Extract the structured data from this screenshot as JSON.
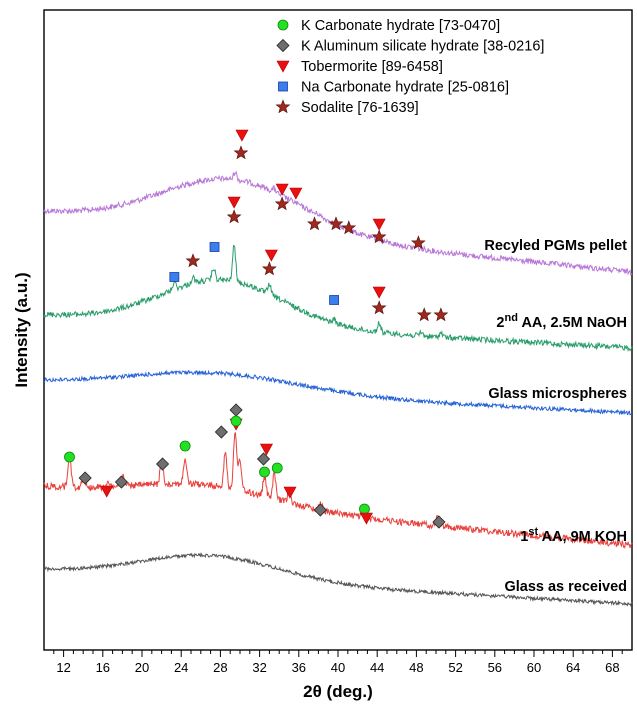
{
  "chart_data": {
    "type": "line",
    "xlabel": "2θ (deg.)",
    "ylabel": "Intensity (a.u.)",
    "xlim": [
      10,
      70
    ],
    "x_ticks": [
      12,
      16,
      20,
      24,
      28,
      32,
      36,
      40,
      44,
      48,
      52,
      56,
      60,
      64,
      68
    ],
    "grid": false,
    "legend_position": "top-center",
    "legend": [
      {
        "key": "k_carbonate",
        "label": "K Carbonate hydrate [73-0470]",
        "marker": "circle",
        "color": "#22e022"
      },
      {
        "key": "k_aluminum",
        "label": "K Aluminum silicate hydrate [38-0216]",
        "marker": "diamond",
        "color": "#6e6e6e"
      },
      {
        "key": "tobermorite",
        "label": "Tobermorite [89-6458]",
        "marker": "triangle-down",
        "color": "#e81010"
      },
      {
        "key": "na_carbonate",
        "label": "Na Carbonate hydrate [25-0816]",
        "marker": "square",
        "color": "#3a7ef0"
      },
      {
        "key": "sodalite",
        "label": "Sodalite [76-1639]",
        "marker": "star",
        "color": "#a0281e"
      }
    ],
    "series": [
      {
        "key": "recycled",
        "label_main": "Recyled PGMs pellet",
        "label_sup": "",
        "label_post": "",
        "color": "#b878d8",
        "peaks": [
          [
            29.5,
            0.55
          ],
          [
            33.5,
            0.25
          ],
          [
            38,
            0.12
          ],
          [
            44,
            0.12
          ],
          [
            48,
            0.08
          ]
        ]
      },
      {
        "key": "naoh",
        "label_main": "",
        "label_pre": "2",
        "label_sup": "nd",
        "label_post": " AA, 2.5M NaOH",
        "color": "#2a9d6a",
        "peaks": [
          [
            23.3,
            0.25
          ],
          [
            25.2,
            0.2
          ],
          [
            27.3,
            0.4
          ],
          [
            29.4,
            1.2
          ],
          [
            33,
            0.35
          ],
          [
            39.6,
            0.12
          ],
          [
            44.2,
            0.3
          ],
          [
            48.5,
            0.12
          ],
          [
            50.5,
            0.15
          ]
        ]
      },
      {
        "key": "microspheres",
        "label_main": "Glass microspheres",
        "label_sup": "",
        "label_post": "",
        "color": "#2663d6",
        "peaks": []
      },
      {
        "key": "koh",
        "label_main": "",
        "label_pre": "1",
        "label_sup": "st",
        "label_post": " AA, 9M KOH",
        "color": "#e8403a",
        "peaks": [
          [
            12.6,
            1.2
          ],
          [
            14,
            0.35
          ],
          [
            16.5,
            0.2
          ],
          [
            18,
            0.35
          ],
          [
            22,
            0.8
          ],
          [
            24.4,
            0.9
          ],
          [
            28.5,
            1.3
          ],
          [
            29.5,
            2.0
          ],
          [
            30,
            1.1
          ],
          [
            32.5,
            0.7
          ],
          [
            33.5,
            0.9
          ],
          [
            35,
            0.4
          ],
          [
            38.2,
            0.25
          ],
          [
            42.8,
            0.35
          ],
          [
            50.2,
            0.35
          ]
        ]
      },
      {
        "key": "received",
        "label_main": "Glass as received",
        "label_sup": "",
        "label_post": "",
        "color": "#555555",
        "peaks": []
      }
    ],
    "phase_markers": [
      {
        "phase": "tobermorite",
        "x": 30.2
      },
      {
        "phase": "sodalite",
        "x": 30.1
      },
      {
        "phase": "tobermorite",
        "x": 34.3
      },
      {
        "phase": "tobermorite",
        "x": 35.7
      },
      {
        "phase": "sodalite",
        "x": 34.3
      },
      {
        "phase": "sodalite",
        "x": 37.6
      },
      {
        "phase": "sodalite",
        "x": 39.8
      },
      {
        "phase": "sodalite",
        "x": 41.1
      },
      {
        "phase": "tobermorite",
        "x": 44.2
      },
      {
        "phase": "sodalite",
        "x": 44.2
      },
      {
        "phase": "sodalite",
        "x": 48.2
      },
      {
        "phase": "tobermorite",
        "x": 29.4
      },
      {
        "phase": "sodalite",
        "x": 29.4
      },
      {
        "phase": "na_carbonate",
        "x": 27.4
      },
      {
        "phase": "sodalite",
        "x": 25.2
      },
      {
        "phase": "na_carbonate",
        "x": 23.3
      },
      {
        "phase": "tobermorite",
        "x": 33.2
      },
      {
        "phase": "sodalite",
        "x": 33.0
      },
      {
        "phase": "na_carbonate",
        "x": 39.6
      },
      {
        "phase": "tobermorite",
        "x": 44.2
      },
      {
        "phase": "sodalite",
        "x": 44.2
      },
      {
        "phase": "sodalite",
        "x": 48.8
      },
      {
        "phase": "sodalite",
        "x": 50.5
      },
      {
        "phase": "tobermorite",
        "x": 29.6
      },
      {
        "phase": "k_aluminum",
        "x": 29.6
      },
      {
        "phase": "k_carbonate",
        "x": 29.6
      },
      {
        "phase": "k_aluminum",
        "x": 28.1
      },
      {
        "phase": "k_carbonate",
        "x": 24.4
      },
      {
        "phase": "k_aluminum",
        "x": 22.1
      },
      {
        "phase": "k_carbonate",
        "x": 12.6
      },
      {
        "phase": "k_aluminum",
        "x": 14.2
      },
      {
        "phase": "tobermorite",
        "x": 16.4
      },
      {
        "phase": "k_aluminum",
        "x": 17.9
      },
      {
        "phase": "tobermorite",
        "x": 32.7
      },
      {
        "phase": "k_aluminum",
        "x": 32.4
      },
      {
        "phase": "k_carbonate",
        "x": 32.5
      },
      {
        "phase": "k_carbonate",
        "x": 33.8
      },
      {
        "phase": "tobermorite",
        "x": 35.1
      },
      {
        "phase": "k_aluminum",
        "x": 38.2
      },
      {
        "phase": "k_carbonate",
        "x": 42.7
      },
      {
        "phase": "tobermorite",
        "x": 42.9
      },
      {
        "phase": "k_aluminum",
        "x": 50.3
      }
    ]
  }
}
